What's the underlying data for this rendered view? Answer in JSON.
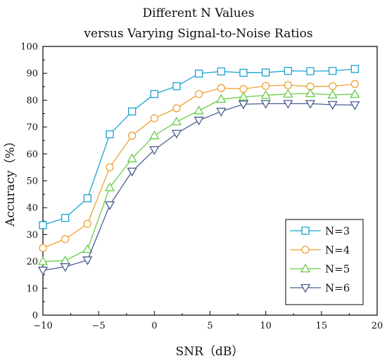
{
  "chart_data": {
    "type": "line",
    "title_lines": [
      "Different N Values",
      "versus Varying Signal-to-Noise Ratios"
    ],
    "xlabel": "SNR（dB）",
    "ylabel": "Accuracy（%）",
    "xlim": [
      -10,
      20
    ],
    "ylim": [
      0,
      100
    ],
    "xticks": [
      -10,
      -5,
      0,
      5,
      10,
      15,
      20
    ],
    "yticks": [
      0,
      10,
      20,
      30,
      40,
      50,
      60,
      70,
      80,
      90,
      100
    ],
    "grid": false,
    "legend_position": "bottom-right",
    "x": [
      -10,
      -8,
      -6,
      -4,
      -2,
      0,
      2,
      4,
      6,
      8,
      10,
      12,
      14,
      16,
      18
    ],
    "series": [
      {
        "name": "N=3",
        "color": "#1aa3d1",
        "marker": "square",
        "values": [
          33.5,
          36.2,
          43.5,
          67.3,
          75.8,
          82.3,
          85.2,
          89.9,
          90.7,
          90.2,
          90.3,
          90.9,
          90.8,
          90.9,
          91.6
        ]
      },
      {
        "name": "N=4",
        "color": "#f0a030",
        "marker": "circle",
        "values": [
          25.0,
          28.3,
          34.0,
          55.0,
          66.8,
          73.3,
          77.0,
          82.3,
          84.5,
          84.2,
          85.3,
          85.6,
          85.1,
          85.2,
          86.0
        ]
      },
      {
        "name": "N=5",
        "color": "#66cc44",
        "marker": "triangle-up",
        "values": [
          20.0,
          20.3,
          24.5,
          47.5,
          58.3,
          66.8,
          72.0,
          76.1,
          80.4,
          81.2,
          81.8,
          82.3,
          82.5,
          82.0,
          82.2
        ]
      },
      {
        "name": "N=6",
        "color": "#4a5d8f",
        "marker": "triangle-down",
        "values": [
          16.7,
          18.0,
          20.5,
          41.0,
          53.5,
          61.5,
          67.6,
          72.5,
          75.8,
          78.5,
          78.7,
          78.7,
          78.7,
          78.3,
          78.2
        ]
      }
    ]
  }
}
